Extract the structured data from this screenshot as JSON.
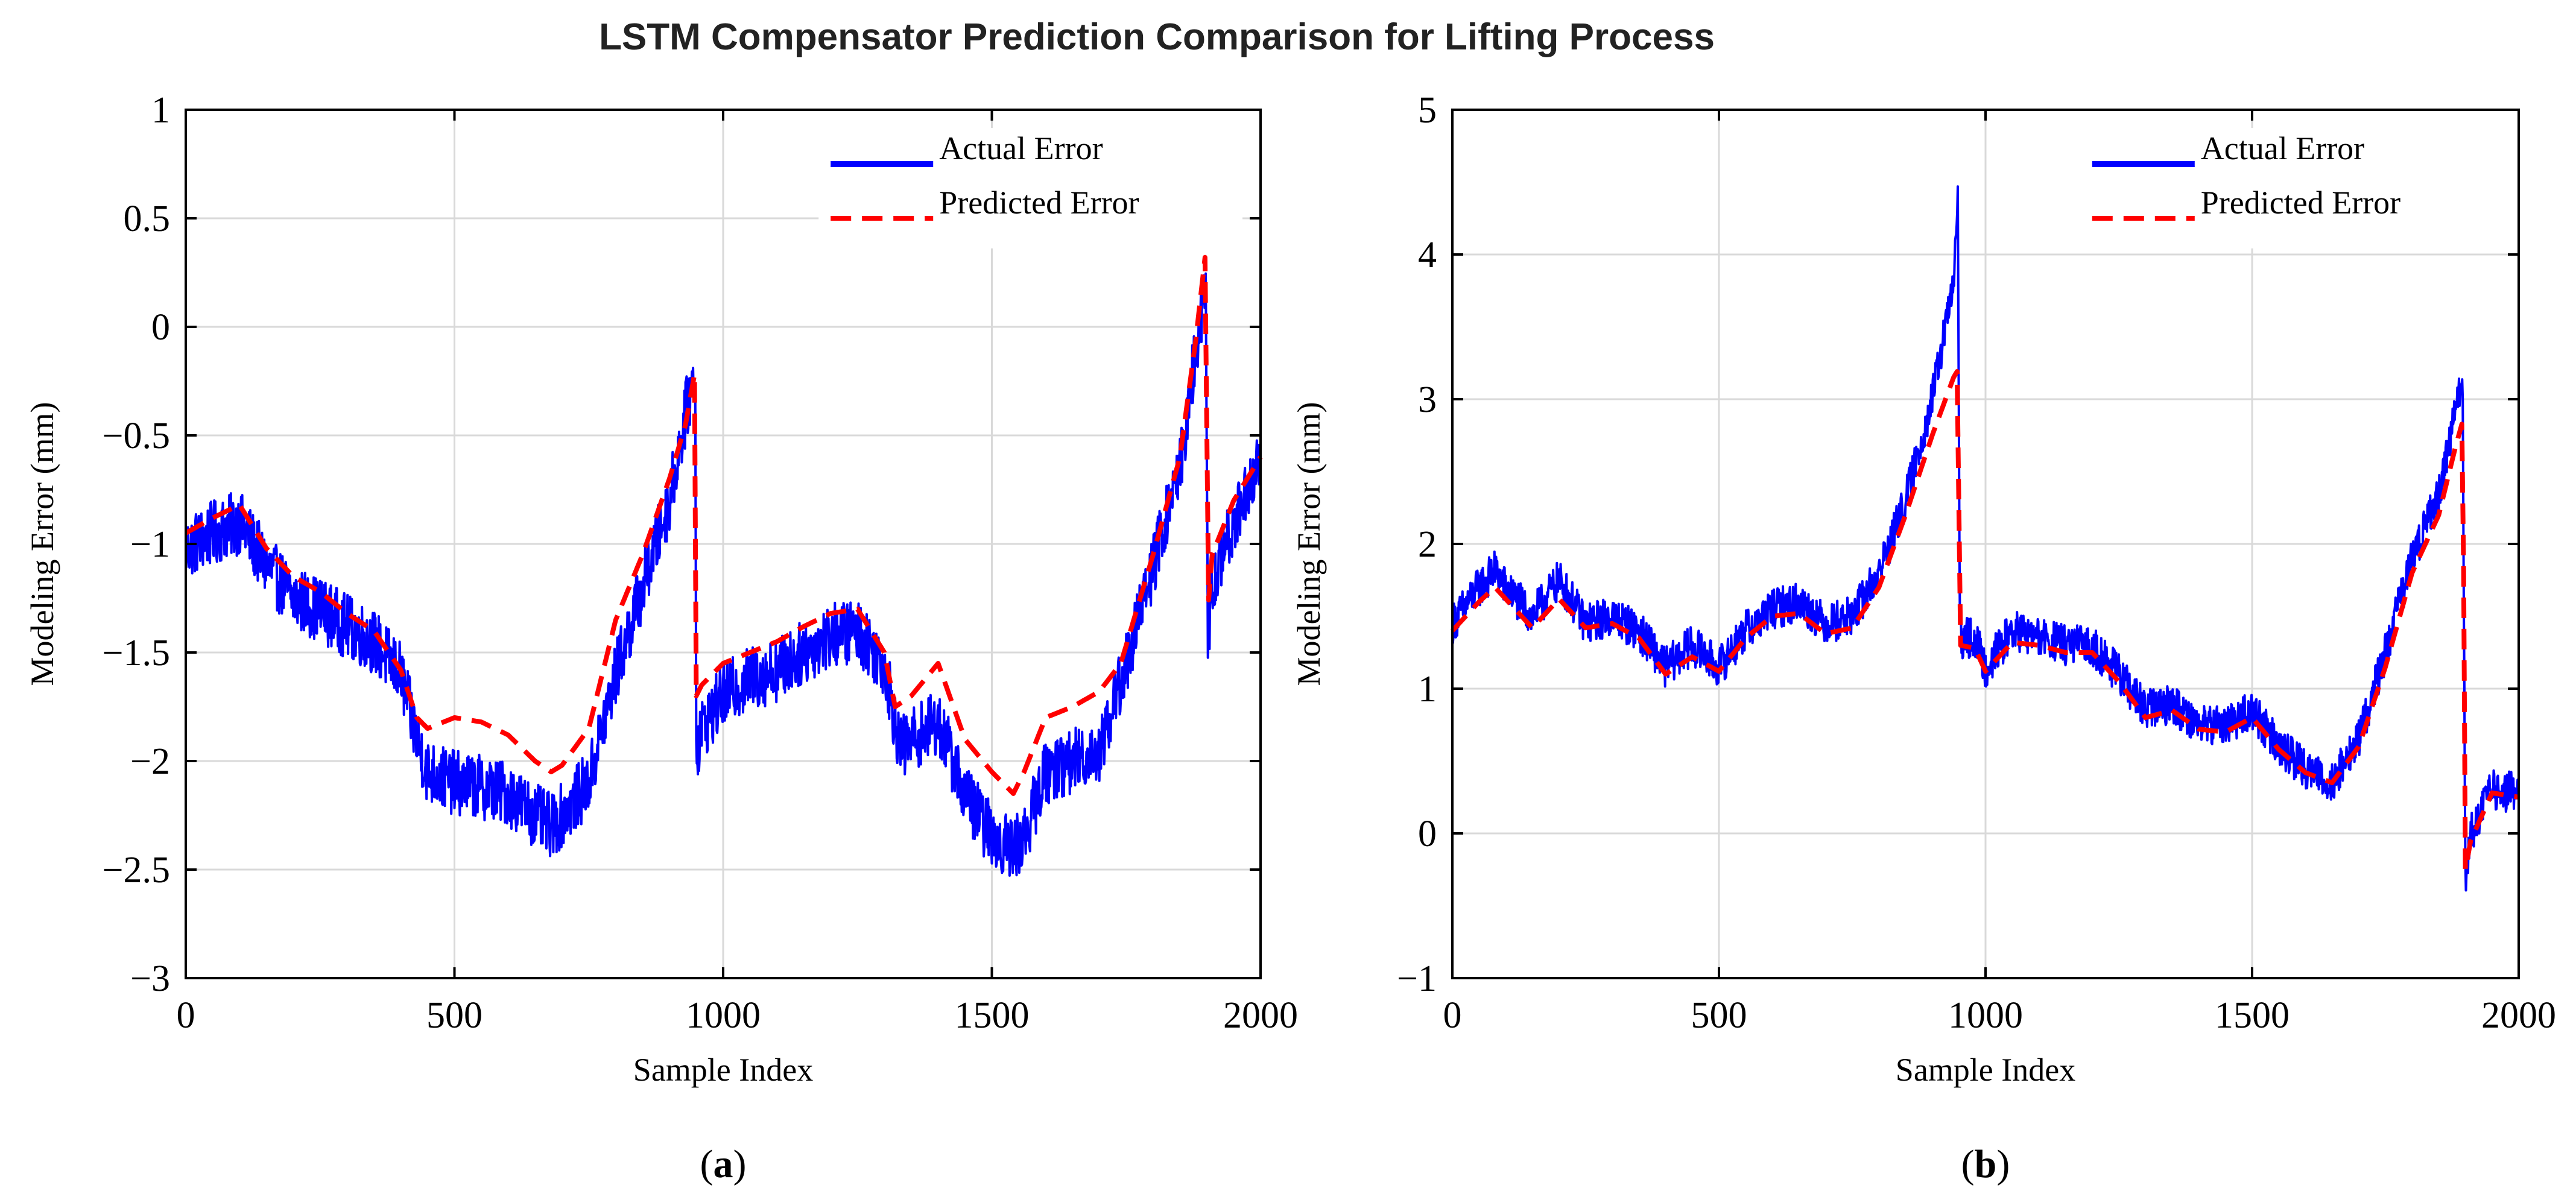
{
  "figure": {
    "title": "LSTM Compensator Prediction Comparison for Lifting Process"
  },
  "colors": {
    "actual": "#0000ff",
    "predicted": "#ff0000",
    "grid": "#d9d9d9",
    "axis": "#000000"
  },
  "chart_data": [
    {
      "type": "line",
      "panel_label": "(a)",
      "xlabel": "Sample Index",
      "ylabel": "Modeling Error (mm)",
      "xlim": [
        0,
        2000
      ],
      "ylim": [
        -3,
        1
      ],
      "xticks": [
        0,
        500,
        1000,
        1500,
        2000
      ],
      "yticks": [
        -3,
        -2.5,
        -2,
        -1.5,
        -1,
        -0.5,
        0,
        0.5,
        1
      ],
      "ytick_labels": [
        "−3",
        "−2.5",
        "−2",
        "−1.5",
        "−1",
        "−0.5",
        "0",
        "0.5",
        "1"
      ],
      "grid": true,
      "legend_position": "top-right",
      "series": [
        {
          "name": "Actual Error",
          "style": "solid",
          "noise": 0.15,
          "x": [
            0,
            50,
            100,
            150,
            200,
            250,
            300,
            350,
            400,
            430,
            450,
            500,
            550,
            600,
            650,
            680,
            700,
            750,
            800,
            850,
            900,
            930,
            948,
            950,
            960,
            1000,
            1050,
            1100,
            1150,
            1200,
            1250,
            1300,
            1330,
            1350,
            1400,
            1450,
            1500,
            1540,
            1560,
            1600,
            1650,
            1700,
            1750,
            1800,
            1850,
            1880,
            1898,
            1902,
            1910,
            1950,
            2000
          ],
          "y": [
            -1.02,
            -0.95,
            -0.9,
            -1.1,
            -1.25,
            -1.3,
            -1.38,
            -1.45,
            -1.6,
            -1.9,
            -2.05,
            -2.1,
            -2.12,
            -2.15,
            -2.25,
            -2.3,
            -2.25,
            -2.1,
            -1.6,
            -1.2,
            -0.8,
            -0.4,
            -0.2,
            -1.95,
            -1.85,
            -1.7,
            -1.62,
            -1.58,
            -1.5,
            -1.42,
            -1.4,
            -1.55,
            -1.95,
            -1.9,
            -1.82,
            -2.15,
            -2.35,
            -2.4,
            -2.35,
            -2.05,
            -2.0,
            -1.95,
            -1.55,
            -1.1,
            -0.65,
            -0.1,
            0.15,
            -1.45,
            -1.2,
            -0.9,
            -0.6
          ]
        },
        {
          "name": "Predicted Error",
          "style": "dashed",
          "noise": 0,
          "x": [
            0,
            50,
            100,
            150,
            200,
            250,
            300,
            350,
            400,
            430,
            450,
            500,
            550,
            600,
            650,
            680,
            700,
            750,
            800,
            850,
            900,
            930,
            948,
            950,
            960,
            1000,
            1050,
            1100,
            1150,
            1200,
            1250,
            1300,
            1320,
            1350,
            1400,
            1450,
            1500,
            1540,
            1560,
            1600,
            1650,
            1700,
            1740,
            1800,
            1850,
            1880,
            1898,
            1902,
            1910,
            1950,
            2000
          ],
          "y": [
            -0.95,
            -0.88,
            -0.82,
            -1.02,
            -1.15,
            -1.22,
            -1.32,
            -1.4,
            -1.58,
            -1.8,
            -1.85,
            -1.8,
            -1.82,
            -1.88,
            -2.0,
            -2.05,
            -2.02,
            -1.85,
            -1.35,
            -1.05,
            -0.7,
            -0.45,
            -0.2,
            -1.7,
            -1.65,
            -1.55,
            -1.5,
            -1.45,
            -1.38,
            -1.32,
            -1.3,
            -1.5,
            -1.75,
            -1.7,
            -1.55,
            -1.9,
            -2.05,
            -2.15,
            -2.05,
            -1.8,
            -1.75,
            -1.68,
            -1.55,
            -1.05,
            -0.6,
            -0.05,
            0.35,
            -1.3,
            -1.05,
            -0.8,
            -0.6
          ]
        }
      ]
    },
    {
      "type": "line",
      "panel_label": "(b)",
      "xlabel": "Sample Index",
      "ylabel": "Modeling Error (mm)",
      "xlim": [
        0,
        2000
      ],
      "ylim": [
        -1,
        5
      ],
      "xticks": [
        0,
        500,
        1000,
        1500,
        2000
      ],
      "yticks": [
        -1,
        0,
        1,
        2,
        3,
        4,
        5
      ],
      "ytick_labels": [
        "−1",
        "0",
        "1",
        "2",
        "3",
        "4",
        "5"
      ],
      "grid": true,
      "legend_position": "top-right",
      "series": [
        {
          "name": "Actual Error",
          "style": "solid",
          "noise": 0.14,
          "x": [
            0,
            50,
            80,
            100,
            150,
            200,
            250,
            300,
            350,
            400,
            450,
            500,
            550,
            600,
            650,
            700,
            750,
            800,
            850,
            900,
            940,
            948,
            952,
            980,
            1000,
            1050,
            1100,
            1150,
            1200,
            1250,
            1300,
            1350,
            1400,
            1450,
            1500,
            1550,
            1600,
            1650,
            1700,
            1750,
            1800,
            1850,
            1880,
            1895,
            1900,
            1910,
            1950,
            2000
          ],
          "y": [
            1.45,
            1.7,
            1.82,
            1.7,
            1.5,
            1.75,
            1.45,
            1.5,
            1.4,
            1.15,
            1.3,
            1.15,
            1.4,
            1.55,
            1.6,
            1.45,
            1.5,
            1.8,
            2.3,
            3.0,
            3.8,
            4.35,
            1.35,
            1.35,
            1.15,
            1.4,
            1.35,
            1.3,
            1.3,
            1.1,
            0.85,
            0.9,
            0.75,
            0.75,
            0.85,
            0.6,
            0.45,
            0.35,
            0.65,
            1.25,
            1.9,
            2.35,
            2.9,
            3.1,
            -0.3,
            0.0,
            0.3,
            0.28
          ]
        },
        {
          "name": "Predicted Error",
          "style": "dashed",
          "noise": 0,
          "x": [
            0,
            50,
            80,
            100,
            150,
            200,
            250,
            300,
            350,
            400,
            450,
            500,
            550,
            600,
            650,
            700,
            750,
            800,
            850,
            900,
            940,
            948,
            952,
            980,
            1000,
            1050,
            1100,
            1150,
            1200,
            1250,
            1300,
            1350,
            1400,
            1450,
            1500,
            1550,
            1600,
            1650,
            1700,
            1750,
            1800,
            1850,
            1880,
            1895,
            1900,
            1910,
            1950,
            2000
          ],
          "y": [
            1.4,
            1.6,
            1.7,
            1.62,
            1.42,
            1.62,
            1.42,
            1.45,
            1.35,
            1.1,
            1.22,
            1.12,
            1.35,
            1.5,
            1.52,
            1.38,
            1.42,
            1.7,
            2.2,
            2.75,
            3.15,
            3.2,
            1.3,
            1.28,
            1.12,
            1.32,
            1.3,
            1.25,
            1.25,
            1.05,
            0.8,
            0.85,
            0.72,
            0.7,
            0.8,
            0.58,
            0.42,
            0.35,
            0.6,
            1.15,
            1.8,
            2.2,
            2.65,
            2.85,
            -0.25,
            -0.05,
            0.28,
            0.25
          ]
        }
      ]
    }
  ]
}
